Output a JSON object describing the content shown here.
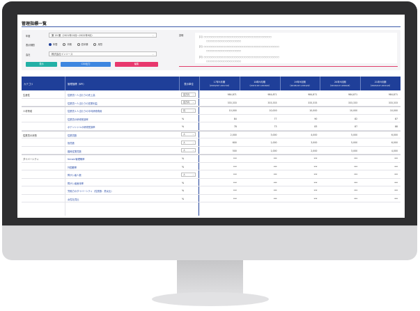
{
  "page_title": "管理指標一覧",
  "filters": {
    "year_label": "年度",
    "year_value": "第 20 期（2021年10月～2022年9月）",
    "period_label": "表示期間",
    "period_options": [
      "年間",
      "半期",
      "四半期",
      "月間"
    ],
    "period_selected": 0,
    "company_label": "会社",
    "company_value": "株式会社インソース"
  },
  "buttons": {
    "display": "表示",
    "csv": "CSV出力",
    "edit": "編集"
  },
  "note": {
    "label": "説明",
    "lines": [
      "【1】○○○○○○○○○○○○○○○○○○○○○○○○○○○○○○○○○○○",
      "○○○○○○○○○○○○○○○○○○",
      "【2】○○○○○○○○○○○○○○○○○○○○○○○○○○○○○○○○○○○○○○○",
      "○○○○○○○○○○○○○○○○○○",
      "【3】○○○○○○○○○○○○○○○○○○○○○○○○○○○○○○○○○○○○○○○",
      "○○○○○○○○○○○○○○○○○○"
    ]
  },
  "table": {
    "headers": {
      "category": "カテゴリ",
      "kpi": "管理指標（KPI）",
      "unit": "表示単位"
    },
    "periods": [
      {
        "title": "17年9月期",
        "range": "（2016/10～2017/9）"
      },
      {
        "title": "18年9月期",
        "range": "（2017/10～2018/9）"
      },
      {
        "title": "19年9月期",
        "range": "（2018/10～2019/9）"
      },
      {
        "title": "20年9月期",
        "range": "（2019/10～2020/9）"
      },
      {
        "title": "21年9月期",
        "range": "（2020/10～2021/9）"
      }
    ],
    "rows": [
      {
        "category": "生産性",
        "kpi": "従業員一人当たりの売上高",
        "unit": "百万円",
        "unit_select": true,
        "values": [
          "984,871",
          "984,871",
          "984,871",
          "984,871",
          "984,871"
        ]
      },
      {
        "category": "",
        "kpi": "従業員一人当たりの営業利益",
        "unit": "百万円",
        "unit_select": true,
        "values": [
          "333,333",
          "333,333",
          "333,333",
          "333,333",
          "333,333"
        ]
      },
      {
        "category": "人材育成",
        "kpi": "従業員１人当たりの平均研修費用",
        "unit": "円",
        "unit_select": true,
        "values": [
          "10,000",
          "10,000",
          "10,000",
          "10,000",
          "10,000"
        ]
      },
      {
        "category": "",
        "kpi": "従業員の研修受講率",
        "unit": "%",
        "unit_select": false,
        "values": [
          "84",
          "77",
          "90",
          "82",
          "87"
        ]
      },
      {
        "category": "",
        "kpi": "ポテンシャルの研修受講率",
        "unit": "%",
        "unit_select": false,
        "values": [
          "78",
          "73",
          "83",
          "87",
          "88"
        ]
      },
      {
        "category": "従業員の状態",
        "kpi": "従業員数",
        "unit": "人",
        "unit_select": true,
        "values": [
          "2,000",
          "3,000",
          "4,000",
          "5,000",
          "6,000"
        ]
      },
      {
        "category": "",
        "kpi": "役員数",
        "unit": "人",
        "unit_select": true,
        "values": [
          "600",
          "1,000",
          "3,000",
          "5,000",
          "6,000"
        ]
      },
      {
        "category": "",
        "kpi": "臨時従業員数",
        "unit": "人",
        "unit_select": true,
        "values": [
          "500",
          "1,000",
          "2,000",
          "3,000",
          "4,000"
        ]
      },
      {
        "category": "ダイバーシティ",
        "kpi": "female管理職率",
        "unit": "%",
        "unit_select": false,
        "values": [
          "***",
          "***",
          "***",
          "***",
          "***"
        ]
      },
      {
        "category": "",
        "kpi": "外国籍率",
        "unit": "%",
        "unit_select": false,
        "values": [
          "***",
          "***",
          "***",
          "***",
          "***"
        ]
      },
      {
        "category": "",
        "kpi": "障がい者人数",
        "unit": "人",
        "unit_select": true,
        "values": [
          "***",
          "***",
          "***",
          "***",
          "***"
        ]
      },
      {
        "category": "",
        "kpi": "障がい者雇用率",
        "unit": "%",
        "unit_select": false,
        "values": [
          "***",
          "***",
          "***",
          "***",
          "***"
        ]
      },
      {
        "category": "",
        "kpi": "労働力のダイバーシティ（性属数：男女比）",
        "unit": "%",
        "unit_select": false,
        "values": [
          "***",
          "***",
          "***",
          "***",
          "***"
        ]
      },
      {
        "category": "",
        "kpi": "女性社員比",
        "unit": "%",
        "unit_select": false,
        "values": [
          "***",
          "***",
          "***",
          "***",
          "***"
        ]
      }
    ]
  },
  "colors": {
    "header_blue": "#1f3f99",
    "button_teal": "#23b0a6",
    "button_blue": "#3d86e0",
    "button_pink": "#e8386e",
    "bezel": "#2e2e30"
  }
}
